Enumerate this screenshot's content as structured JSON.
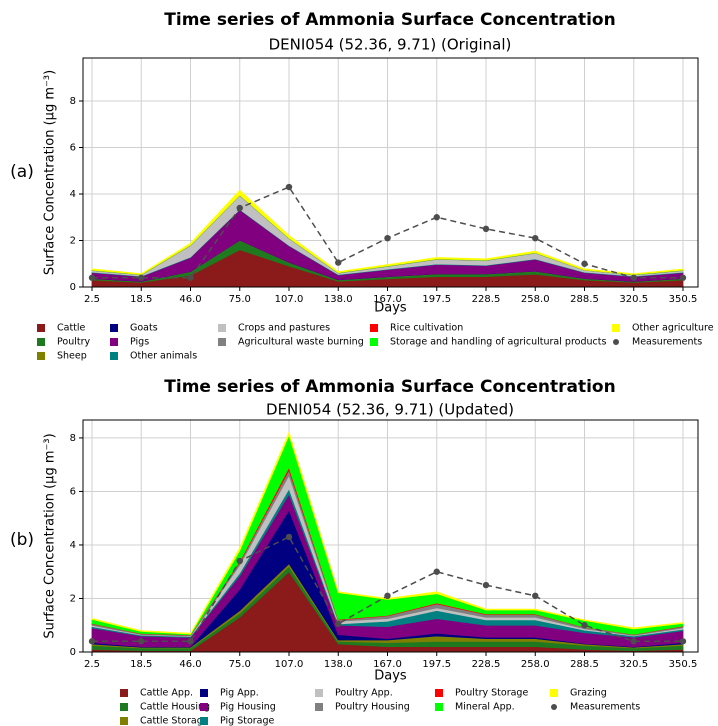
{
  "chart_data": [
    {
      "type": "stacked-area",
      "title": "Time series of Ammonia Surface Concentration",
      "subtitle": "DENI054 (52.36, 9.71) (Original)",
      "panel_label": "(a)",
      "x_label": "Days",
      "y_label": "Surface Concentration (μg m⁻³)",
      "categories": [
        "2.5",
        "18.5",
        "46.0",
        "75.0",
        "107.0",
        "138.0",
        "167.0",
        "197.5",
        "228.5",
        "258.0",
        "288.5",
        "320.5",
        "350.5"
      ],
      "ylim": [
        0,
        9.85
      ],
      "yticks": [
        0,
        2,
        4,
        6,
        8
      ],
      "grid": true,
      "series": [
        {
          "name": "Cattle",
          "color": "#8b1a1a",
          "values": [
            0.3,
            0.2,
            0.5,
            1.6,
            0.9,
            0.25,
            0.35,
            0.45,
            0.45,
            0.55,
            0.3,
            0.2,
            0.3
          ]
        },
        {
          "name": "Poultry",
          "color": "#1f7a1f",
          "values": [
            0.05,
            0.03,
            0.15,
            0.4,
            0.15,
            0.05,
            0.08,
            0.1,
            0.1,
            0.12,
            0.05,
            0.03,
            0.05
          ]
        },
        {
          "name": "Sheep",
          "color": "#808000",
          "values": [
            0.01,
            0.01,
            0.01,
            0.01,
            0.01,
            0.01,
            0.01,
            0.01,
            0.01,
            0.01,
            0.01,
            0.01,
            0.01
          ]
        },
        {
          "name": "Goats",
          "color": "#000080",
          "values": [
            0.01,
            0.01,
            0.01,
            0.01,
            0.01,
            0.01,
            0.01,
            0.01,
            0.01,
            0.01,
            0.01,
            0.01,
            0.01
          ]
        },
        {
          "name": "Pigs",
          "color": "#800080",
          "values": [
            0.25,
            0.2,
            0.6,
            1.3,
            0.7,
            0.2,
            0.3,
            0.4,
            0.35,
            0.5,
            0.25,
            0.2,
            0.25
          ]
        },
        {
          "name": "Other animals",
          "color": "#008080",
          "values": [
            0.02,
            0.02,
            0.02,
            0.02,
            0.02,
            0.02,
            0.02,
            0.02,
            0.02,
            0.02,
            0.02,
            0.02,
            0.02
          ]
        },
        {
          "name": "Crops and pastures",
          "color": "#c0c0c0",
          "values": [
            0.07,
            0.05,
            0.5,
            0.6,
            0.3,
            0.06,
            0.12,
            0.2,
            0.2,
            0.25,
            0.08,
            0.05,
            0.07
          ]
        },
        {
          "name": "Agricultural waste burning",
          "color": "#808080",
          "values": [
            0.01,
            0.01,
            0.01,
            0.01,
            0.01,
            0.01,
            0.01,
            0.01,
            0.01,
            0.01,
            0.01,
            0.01,
            0.01
          ]
        },
        {
          "name": "Rice cultivation",
          "color": "#ff0000",
          "values": [
            0,
            0,
            0,
            0,
            0,
            0,
            0,
            0,
            0,
            0,
            0,
            0,
            0
          ]
        },
        {
          "name": "Storage and handling of agricultural products",
          "color": "#00ff00",
          "values": [
            0.01,
            0.01,
            0.01,
            0.01,
            0.01,
            0.01,
            0.01,
            0.01,
            0.01,
            0.01,
            0.01,
            0.01,
            0.01
          ]
        },
        {
          "name": "Other agriculture",
          "color": "#ffff00",
          "values": [
            0.05,
            0.03,
            0.07,
            0.2,
            0.1,
            0.04,
            0.05,
            0.06,
            0.05,
            0.06,
            0.04,
            0.03,
            0.04
          ]
        },
        {
          "name": "Measurements",
          "color": "#4d4d4d",
          "type": "line",
          "dashed": true,
          "values": [
            0.4,
            0.4,
            0.4,
            3.4,
            4.3,
            1.05,
            2.1,
            3.0,
            2.5,
            2.1,
            1.0,
            0.4,
            0.4
          ]
        }
      ]
    },
    {
      "type": "stacked-area",
      "title": "Time series of Ammonia Surface Concentration",
      "subtitle": "DENI054 (52.36, 9.71) (Updated)",
      "panel_label": "(b)",
      "x_label": "Days",
      "y_label": "Surface Concentration (μg m⁻³)",
      "categories": [
        "2.5",
        "18.5",
        "46.0",
        "75.0",
        "107.0",
        "138.0",
        "167.0",
        "197.5",
        "228.5",
        "258.0",
        "288.5",
        "320.5",
        "350.5"
      ],
      "ylim": [
        0,
        8.67
      ],
      "yticks": [
        0,
        2,
        4,
        6,
        8
      ],
      "grid": true,
      "series": [
        {
          "name": "Cattle App.",
          "color": "#8b1a1a",
          "values": [
            0.1,
            0.05,
            0.05,
            1.3,
            3.0,
            0.3,
            0.2,
            0.2,
            0.2,
            0.2,
            0.1,
            0.05,
            0.1
          ]
        },
        {
          "name": "Cattle Housing",
          "color": "#1f7a1f",
          "values": [
            0.15,
            0.1,
            0.1,
            0.15,
            0.2,
            0.1,
            0.15,
            0.2,
            0.2,
            0.2,
            0.15,
            0.1,
            0.15
          ]
        },
        {
          "name": "Cattle Storage",
          "color": "#808000",
          "values": [
            0.05,
            0.03,
            0.03,
            0.1,
            0.1,
            0.05,
            0.1,
            0.2,
            0.1,
            0.1,
            0.05,
            0.03,
            0.05
          ]
        },
        {
          "name": "Pig App.",
          "color": "#000080",
          "values": [
            0.05,
            0.02,
            0.02,
            0.8,
            2.0,
            0.2,
            0.05,
            0.1,
            0.05,
            0.05,
            0.02,
            0.02,
            0.05
          ]
        },
        {
          "name": "Pig Housing",
          "color": "#800080",
          "values": [
            0.55,
            0.4,
            0.35,
            0.5,
            0.6,
            0.35,
            0.45,
            0.55,
            0.45,
            0.45,
            0.4,
            0.35,
            0.45
          ]
        },
        {
          "name": "Pig Storage",
          "color": "#008080",
          "values": [
            0.05,
            0.03,
            0.03,
            0.1,
            0.2,
            0.05,
            0.2,
            0.3,
            0.2,
            0.2,
            0.1,
            0.05,
            0.05
          ]
        },
        {
          "name": "Poultry App.",
          "color": "#c0c0c0",
          "values": [
            0.05,
            0.02,
            0.02,
            0.3,
            0.5,
            0.1,
            0.1,
            0.1,
            0.1,
            0.1,
            0.05,
            0.02,
            0.05
          ]
        },
        {
          "name": "Poultry Housing",
          "color": "#808080",
          "values": [
            0.05,
            0.03,
            0.03,
            0.1,
            0.2,
            0.05,
            0.1,
            0.15,
            0.1,
            0.1,
            0.05,
            0.03,
            0.05
          ]
        },
        {
          "name": "Poultry Storage",
          "color": "#ff0000",
          "values": [
            0.02,
            0.01,
            0.01,
            0.04,
            0.1,
            0.02,
            0.02,
            0.03,
            0.02,
            0.02,
            0.01,
            0.01,
            0.02
          ]
        },
        {
          "name": "Mineral App.",
          "color": "#00ff00",
          "values": [
            0.15,
            0.08,
            0.03,
            0.4,
            1.2,
            1.0,
            0.6,
            0.35,
            0.15,
            0.15,
            0.25,
            0.2,
            0.1
          ]
        },
        {
          "name": "Grazing",
          "color": "#ffff00",
          "values": [
            0.03,
            0.03,
            0.03,
            0.1,
            0.1,
            0.03,
            0.03,
            0.07,
            0.03,
            0.03,
            0.02,
            0.04,
            0.03
          ]
        },
        {
          "name": "Measurements",
          "color": "#4d4d4d",
          "type": "line",
          "dashed": true,
          "values": [
            0.4,
            0.4,
            0.4,
            3.4,
            4.3,
            1.05,
            2.1,
            3.0,
            2.5,
            2.1,
            1.0,
            0.4,
            0.4
          ]
        }
      ]
    }
  ]
}
